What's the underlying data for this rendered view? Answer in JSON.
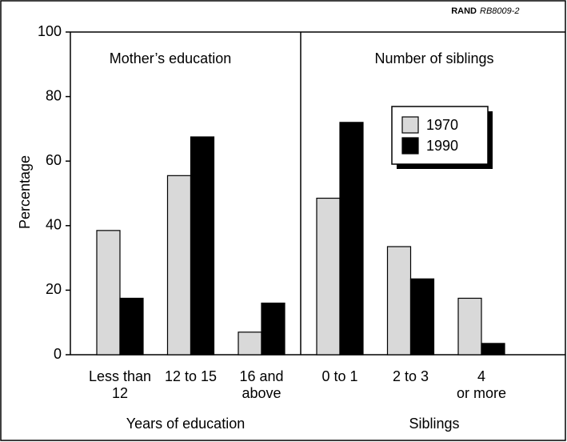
{
  "chart_data": {
    "type": "bar",
    "source": {
      "org": "RAND",
      "id": "RB8009-2"
    },
    "y_label": "Percentage",
    "ylim": [
      0,
      100
    ],
    "yticks": [
      0,
      20,
      40,
      60,
      80,
      100
    ],
    "series": [
      {
        "name": "1970",
        "color": "#d9d9d9"
      },
      {
        "name": "1990",
        "color": "#000000"
      }
    ],
    "panels": [
      {
        "title": "Mother’s education",
        "x_label": "Years of education",
        "categories": [
          "Less than\n12",
          "12 to 15",
          "16 and\nabove"
        ],
        "values": [
          [
            38.5,
            55.5,
            7
          ],
          [
            17.5,
            67.5,
            16
          ]
        ]
      },
      {
        "title": "Number of siblings",
        "x_label": "Siblings",
        "categories": [
          "0 to 1",
          "2 to 3",
          "4\nor more"
        ],
        "values": [
          [
            48.5,
            33.5,
            17.5
          ],
          [
            72,
            23.5,
            3.5
          ]
        ]
      }
    ]
  }
}
